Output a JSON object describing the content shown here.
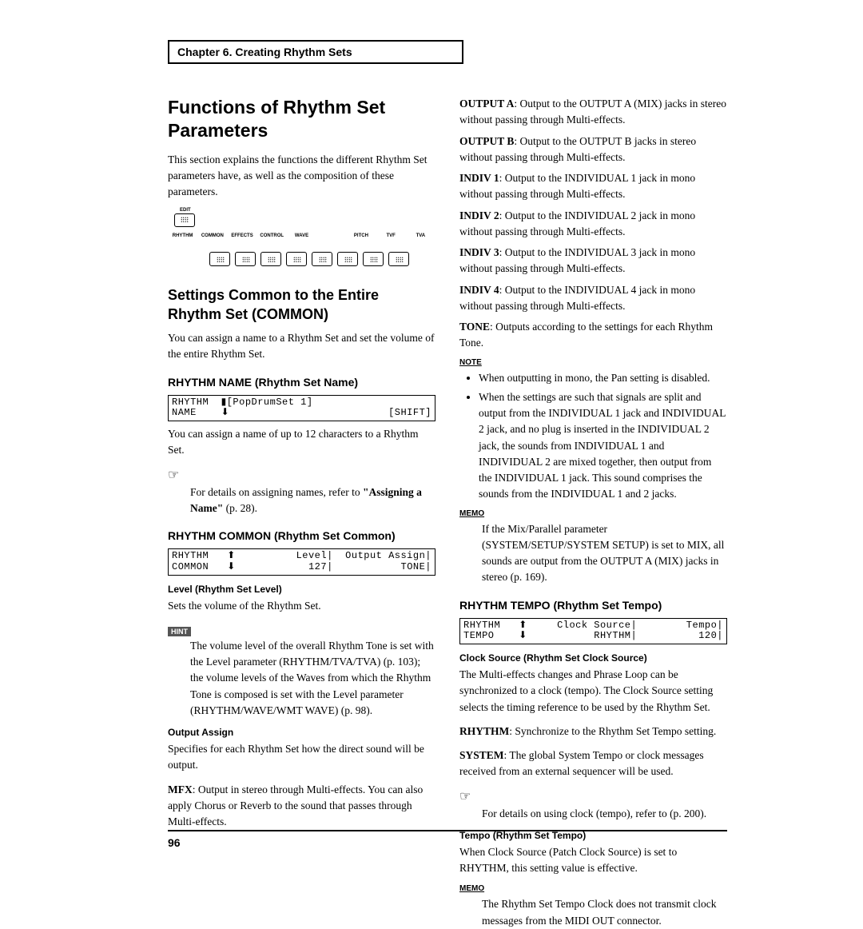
{
  "chapter": "Chapter 6. Creating Rhythm Sets",
  "pageNumber": "96",
  "left": {
    "h1": "Functions of Rhythm Set Parameters",
    "intro": "This section explains the functions the different Rhythm Set parameters have, as well as the composition of these parameters.",
    "diagram": {
      "edit": "EDIT",
      "labels": [
        "RHYTHM",
        "COMMON",
        "EFFECTS",
        "CONTROL",
        "WAVE",
        "",
        "PITCH",
        "TVF",
        "TVA"
      ]
    },
    "h2": "Settings Common to the Entire Rhythm Set (COMMON)",
    "p2": "You can assign a name to a Rhythm Set and set the volume of the entire Rhythm Set.",
    "name": {
      "h3": "RHYTHM NAME (Rhythm Set Name)",
      "lcdL1a": "RHYTHM",
      "lcdL1b": "▮[PopDrumSet 1]",
      "lcdL2a": "NAME",
      "lcdL2b": "",
      "lcdR1": "",
      "lcdR2": "[SHIFT]",
      "p": "You can assign a name of up to 12 characters to a Rhythm Set.",
      "pointer": "☞",
      "ref1": "For details on assigning names, refer to ",
      "refBold": "\"Assigning a Name\"",
      "ref2": " (p. 28)."
    },
    "common": {
      "h3": "RHYTHM COMMON (Rhythm Set Common)",
      "lcdL1": "RHYTHM   ⬆",
      "lcdL2": "COMMON   ⬇",
      "lcdR1": "Level|  Output Assign|",
      "lcdR2": "127|           TONE|",
      "level": {
        "h4": "Level (Rhythm Set Level)",
        "p": "Sets the volume of the Rhythm Set.",
        "hint": "HINT",
        "hintText": "The volume level of the overall Rhythm Tone is set with the Level parameter (RHYTHM/TVA/TVA) (p. 103); the volume levels of the Waves from which the Rhythm Tone is composed is set with the Level parameter (RHYTHM/WAVE/WMT WAVE) (p. 98)."
      },
      "output": {
        "h4": "Output Assign",
        "p1": "Specifies for each Rhythm Set how the direct sound will be output.",
        "mfxB": "MFX",
        "mfx": ": Output in stereo through Multi-effects. You can also apply Chorus or Reverb to the sound that passes through Multi-effects."
      }
    }
  },
  "right": {
    "outputs": [
      {
        "b": "OUTPUT A",
        "t": ": Output to the OUTPUT A (MIX) jacks in stereo without passing through Multi-effects."
      },
      {
        "b": "OUTPUT B",
        "t": ": Output to the OUTPUT B jacks in stereo without passing through Multi-effects."
      },
      {
        "b": "INDIV 1",
        "t": ": Output to the INDIVIDUAL 1 jack in mono without passing through Multi-effects."
      },
      {
        "b": "INDIV 2",
        "t": ": Output to the INDIVIDUAL 2 jack in mono without passing through Multi-effects."
      },
      {
        "b": "INDIV 3",
        "t": ": Output to the INDIVIDUAL 3 jack in mono without passing through Multi-effects."
      },
      {
        "b": "INDIV 4",
        "t": ": Output to the INDIVIDUAL 4 jack in mono without passing through Multi-effects."
      },
      {
        "b": "TONE",
        "t": ": Outputs according to the settings for each Rhythm Tone."
      }
    ],
    "noteLabel": "NOTE",
    "notes": [
      "When outputting in mono, the Pan setting is disabled.",
      "When the settings are such that signals are split and output from the INDIVIDUAL 1 jack and INDIVIDUAL 2 jack, and no plug is inserted in the INDIVIDUAL 2 jack, the sounds from INDIVIDUAL 1 and INDIVIDUAL 2 are mixed together, then output from the INDIVIDUAL 1 jack. This sound comprises the sounds from the INDIVIDUAL 1 and 2 jacks."
    ],
    "memoLabel": "MEMO",
    "memo1": "If the Mix/Parallel parameter (SYSTEM/SETUP/SYSTEM SETUP) is set to MIX, all sounds are output from the OUTPUT A (MIX) jacks in stereo (p. 169).",
    "tempo": {
      "h3": "RHYTHM TEMPO (Rhythm Set Tempo)",
      "lcdL1": "RHYTHM   ⬆",
      "lcdL2": "TEMPO    ⬇",
      "lcdR1": "Clock Source|        Tempo|",
      "lcdR2": "RHYTHM|          120|",
      "clock": {
        "h4": "Clock Source (Rhythm Set Clock Source)",
        "p1": "The Multi-effects changes and Phrase Loop can be synchronized to a clock (tempo). The Clock Source setting selects the timing reference to be used by the Rhythm Set.",
        "rhyB": "RHYTHM",
        "rhy": ": Synchronize to the Rhythm Set Tempo setting.",
        "sysB": "SYSTEM",
        "sys": ": The global System Tempo or clock messages received from an external sequencer will be used.",
        "pointer": "☞",
        "ref": "For details on using clock (tempo), refer to (p. 200)."
      },
      "tempoParam": {
        "h4": "Tempo (Rhythm Set Tempo)",
        "p": "When Clock Source (Patch Clock Source) is set to RHYTHM, this setting value is effective.",
        "memo": "The Rhythm Set Tempo Clock does not transmit clock messages from the MIDI OUT connector."
      }
    }
  }
}
